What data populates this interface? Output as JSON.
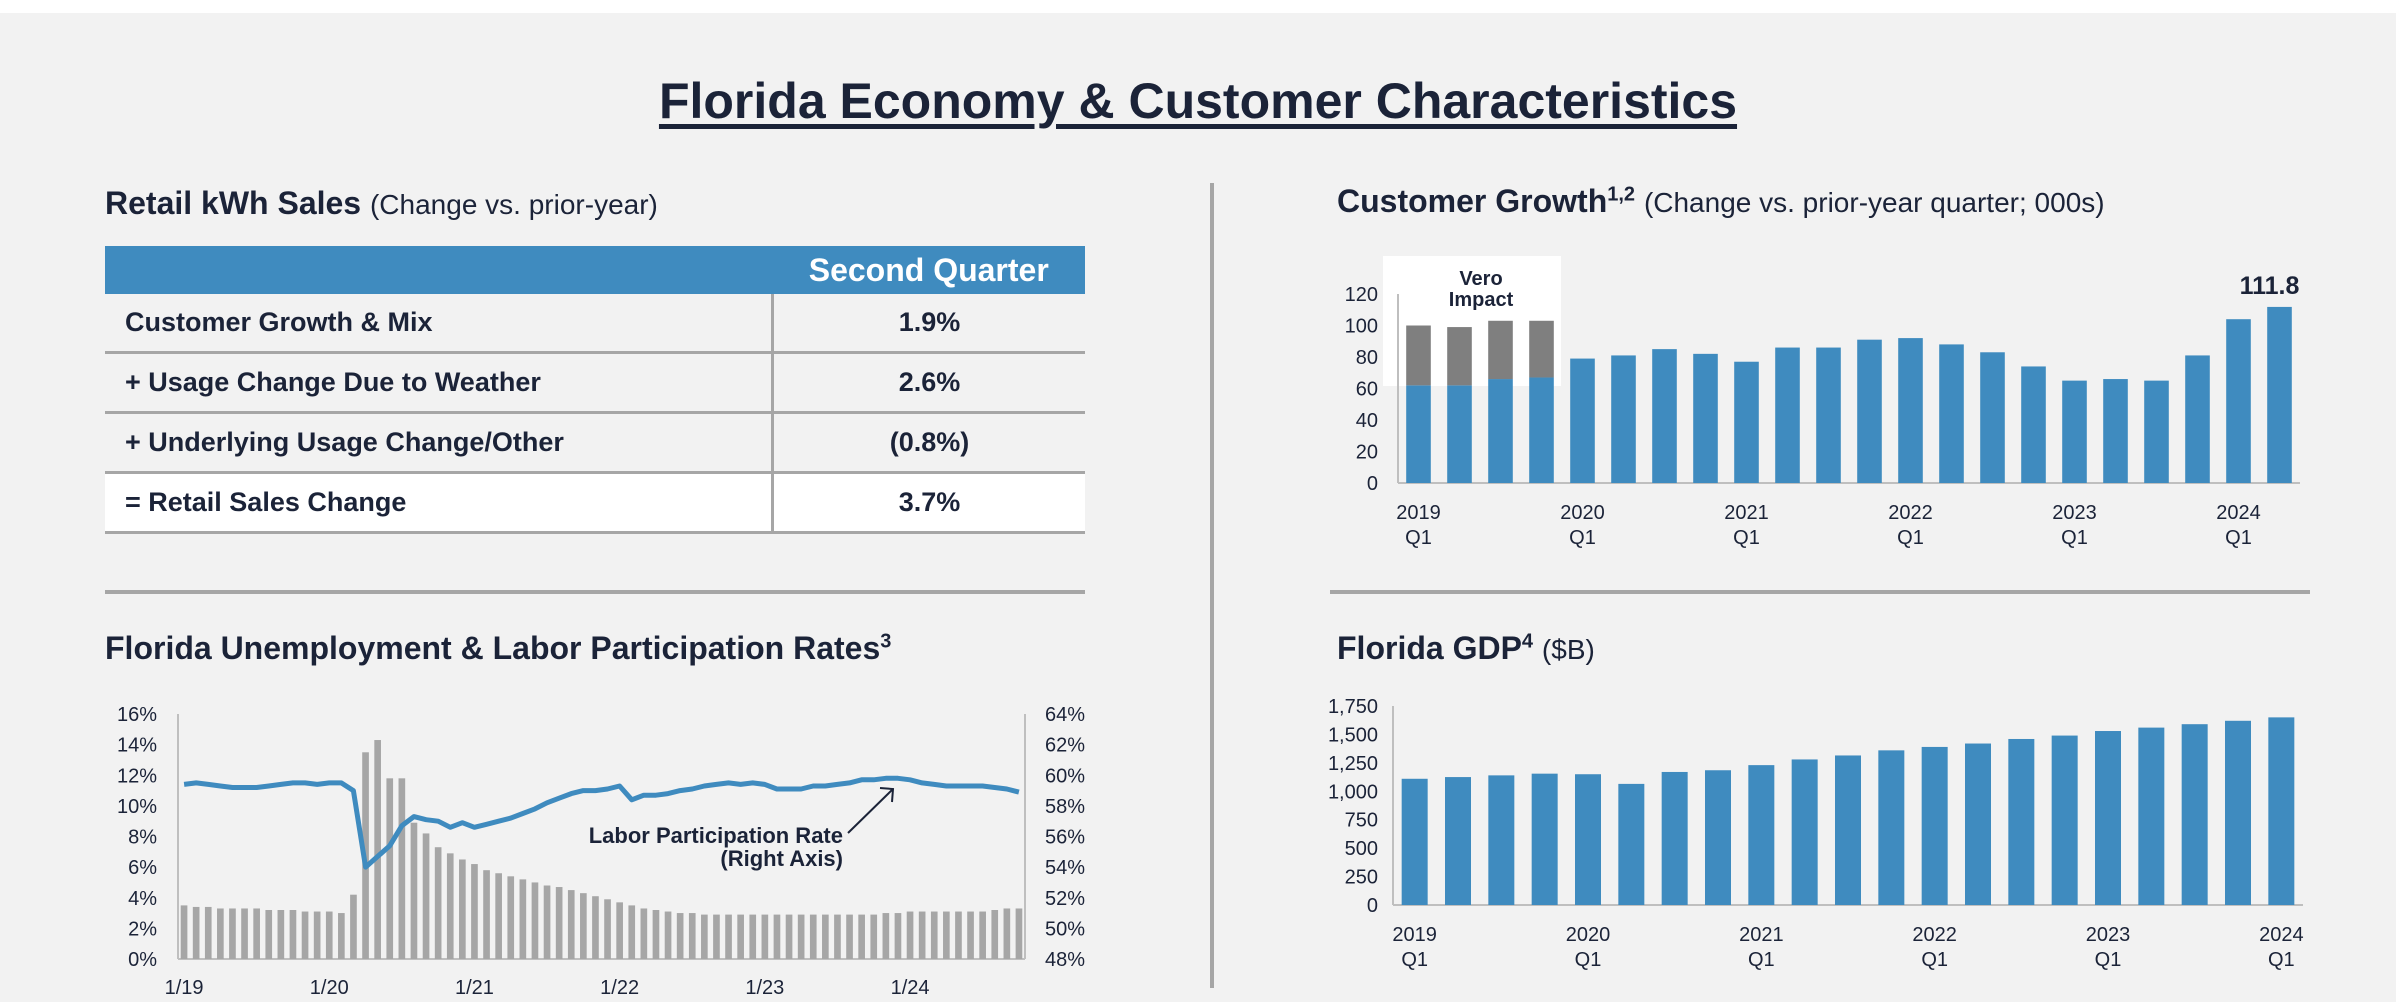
{
  "page": {
    "title": "Florida Economy & Customer Characteristics"
  },
  "retail_sales": {
    "title": "Retail kWh Sales",
    "subtitle": "(Change vs. prior-year)",
    "column_header": "Second Quarter",
    "rows": [
      {
        "label": "Customer Growth & Mix",
        "value": "1.9%"
      },
      {
        "label": "+ Usage Change Due to Weather",
        "value": "2.6%"
      },
      {
        "label": "+ Underlying Usage Change/Other",
        "value": "(0.8%)"
      },
      {
        "label": "= Retail Sales Change",
        "value": "3.7%"
      }
    ]
  },
  "customer_growth": {
    "title": "Customer Growth",
    "sup": "1,2",
    "subtitle": "(Change vs. prior-year quarter; 000s)"
  },
  "unemployment": {
    "title": "Florida Unemployment & Labor Participation Rates",
    "sup": "3"
  },
  "gdp": {
    "title": "Florida GDP",
    "sup": "4",
    "subtitle": "($B)"
  },
  "chart_data": [
    {
      "id": "customer_growth",
      "type": "bar",
      "title": "Customer Growth",
      "ylim": [
        0,
        120
      ],
      "yticks": [
        0,
        20,
        40,
        60,
        80,
        100,
        120
      ],
      "x_tick_labels": [
        {
          "index": 0,
          "year": "2019",
          "q": "Q1"
        },
        {
          "index": 4,
          "year": "2020",
          "q": "Q1"
        },
        {
          "index": 8,
          "year": "2021",
          "q": "Q1"
        },
        {
          "index": 12,
          "year": "2022",
          "q": "Q1"
        },
        {
          "index": 16,
          "year": "2023",
          "q": "Q1"
        },
        {
          "index": 20,
          "year": "2024",
          "q": "Q1"
        }
      ],
      "series": [
        {
          "name": "Customer Growth",
          "color": "#3f8bbf",
          "values": [
            62,
            62,
            66,
            67,
            79,
            81,
            85,
            82,
            77,
            86,
            86,
            91,
            92,
            88,
            83,
            74,
            65,
            66,
            65,
            81,
            104,
            111.8
          ]
        },
        {
          "name": "Vero Impact",
          "color": "#7f7f7f",
          "values": [
            38,
            37,
            37,
            36,
            0,
            0,
            0,
            0,
            0,
            0,
            0,
            0,
            0,
            0,
            0,
            0,
            0,
            0,
            0,
            0,
            0,
            0
          ]
        }
      ],
      "annotations": {
        "vero_line1": "Vero",
        "vero_line2": "Impact",
        "last_value_label": "111.8"
      }
    },
    {
      "id": "unemployment",
      "type": "bar+line",
      "title": "Florida Unemployment & Labor Participation Rates",
      "left_axis": {
        "ylim": [
          0,
          16
        ],
        "ticks": [
          "0%",
          "2%",
          "4%",
          "6%",
          "8%",
          "10%",
          "12%",
          "14%",
          "16%"
        ]
      },
      "right_axis": {
        "ylim": [
          48,
          64
        ],
        "ticks": [
          "48%",
          "50%",
          "52%",
          "54%",
          "56%",
          "58%",
          "60%",
          "62%",
          "64%"
        ]
      },
      "x_tick_labels": [
        {
          "index": 0,
          "label": "1/19"
        },
        {
          "index": 12,
          "label": "1/20"
        },
        {
          "index": 24,
          "label": "1/21"
        },
        {
          "index": 36,
          "label": "1/22"
        },
        {
          "index": 48,
          "label": "1/23"
        },
        {
          "index": 60,
          "label": "1/24"
        }
      ],
      "series": [
        {
          "name": "Unemployment Rate",
          "axis": "left",
          "type": "bar",
          "color": "#a6a6a6",
          "values": [
            3.5,
            3.4,
            3.4,
            3.3,
            3.3,
            3.3,
            3.3,
            3.2,
            3.2,
            3.2,
            3.1,
            3.1,
            3.1,
            3.0,
            4.2,
            13.5,
            14.3,
            11.8,
            11.8,
            8.9,
            8.2,
            7.3,
            6.9,
            6.5,
            6.2,
            5.8,
            5.6,
            5.4,
            5.2,
            5.0,
            4.8,
            4.7,
            4.5,
            4.3,
            4.1,
            3.9,
            3.7,
            3.5,
            3.3,
            3.2,
            3.1,
            3.0,
            3.0,
            2.9,
            2.9,
            2.9,
            2.9,
            2.9,
            2.9,
            2.9,
            2.9,
            2.9,
            2.9,
            2.9,
            2.9,
            2.9,
            2.9,
            2.9,
            3.0,
            3.0,
            3.1,
            3.1,
            3.1,
            3.1,
            3.1,
            3.1,
            3.1,
            3.2,
            3.3,
            3.3
          ]
        },
        {
          "name": "Labor Participation Rate (Right Axis)",
          "axis": "right",
          "type": "line",
          "color": "#3f8bbf",
          "values": [
            59.4,
            59.5,
            59.4,
            59.3,
            59.2,
            59.2,
            59.2,
            59.3,
            59.4,
            59.5,
            59.5,
            59.4,
            59.5,
            59.5,
            59.0,
            54.0,
            54.7,
            55.4,
            56.7,
            57.3,
            57.1,
            57.0,
            56.6,
            56.9,
            56.6,
            56.8,
            57.0,
            57.2,
            57.5,
            57.8,
            58.2,
            58.5,
            58.8,
            59.0,
            59.0,
            59.1,
            59.3,
            58.4,
            58.7,
            58.7,
            58.8,
            59.0,
            59.1,
            59.3,
            59.4,
            59.5,
            59.4,
            59.5,
            59.4,
            59.1,
            59.1,
            59.1,
            59.3,
            59.3,
            59.4,
            59.5,
            59.7,
            59.7,
            59.8,
            59.8,
            59.7,
            59.5,
            59.4,
            59.3,
            59.3,
            59.3,
            59.3,
            59.2,
            59.1,
            58.9
          ]
        }
      ],
      "annotation": {
        "line1": "Labor Participation Rate",
        "line2": "(Right Axis)"
      }
    },
    {
      "id": "gdp",
      "type": "bar",
      "title": "Florida GDP",
      "ylim": [
        0,
        1750
      ],
      "yticks": [
        "0",
        "250",
        "500",
        "750",
        "1,000",
        "1,250",
        "1,500",
        "1,750"
      ],
      "x_tick_labels": [
        {
          "index": 0,
          "year": "2019",
          "q": "Q1"
        },
        {
          "index": 4,
          "year": "2020",
          "q": "Q1"
        },
        {
          "index": 8,
          "year": "2021",
          "q": "Q1"
        },
        {
          "index": 12,
          "year": "2022",
          "q": "Q1"
        },
        {
          "index": 16,
          "year": "2023",
          "q": "Q1"
        },
        {
          "index": 20,
          "year": "2024",
          "q": "Q1"
        }
      ],
      "series": [
        {
          "name": "Florida GDP",
          "color": "#3f8bbf",
          "values": [
            1110,
            1125,
            1140,
            1155,
            1150,
            1065,
            1170,
            1185,
            1230,
            1280,
            1315,
            1360,
            1390,
            1420,
            1460,
            1490,
            1530,
            1560,
            1590,
            1620,
            1650
          ]
        }
      ]
    }
  ]
}
